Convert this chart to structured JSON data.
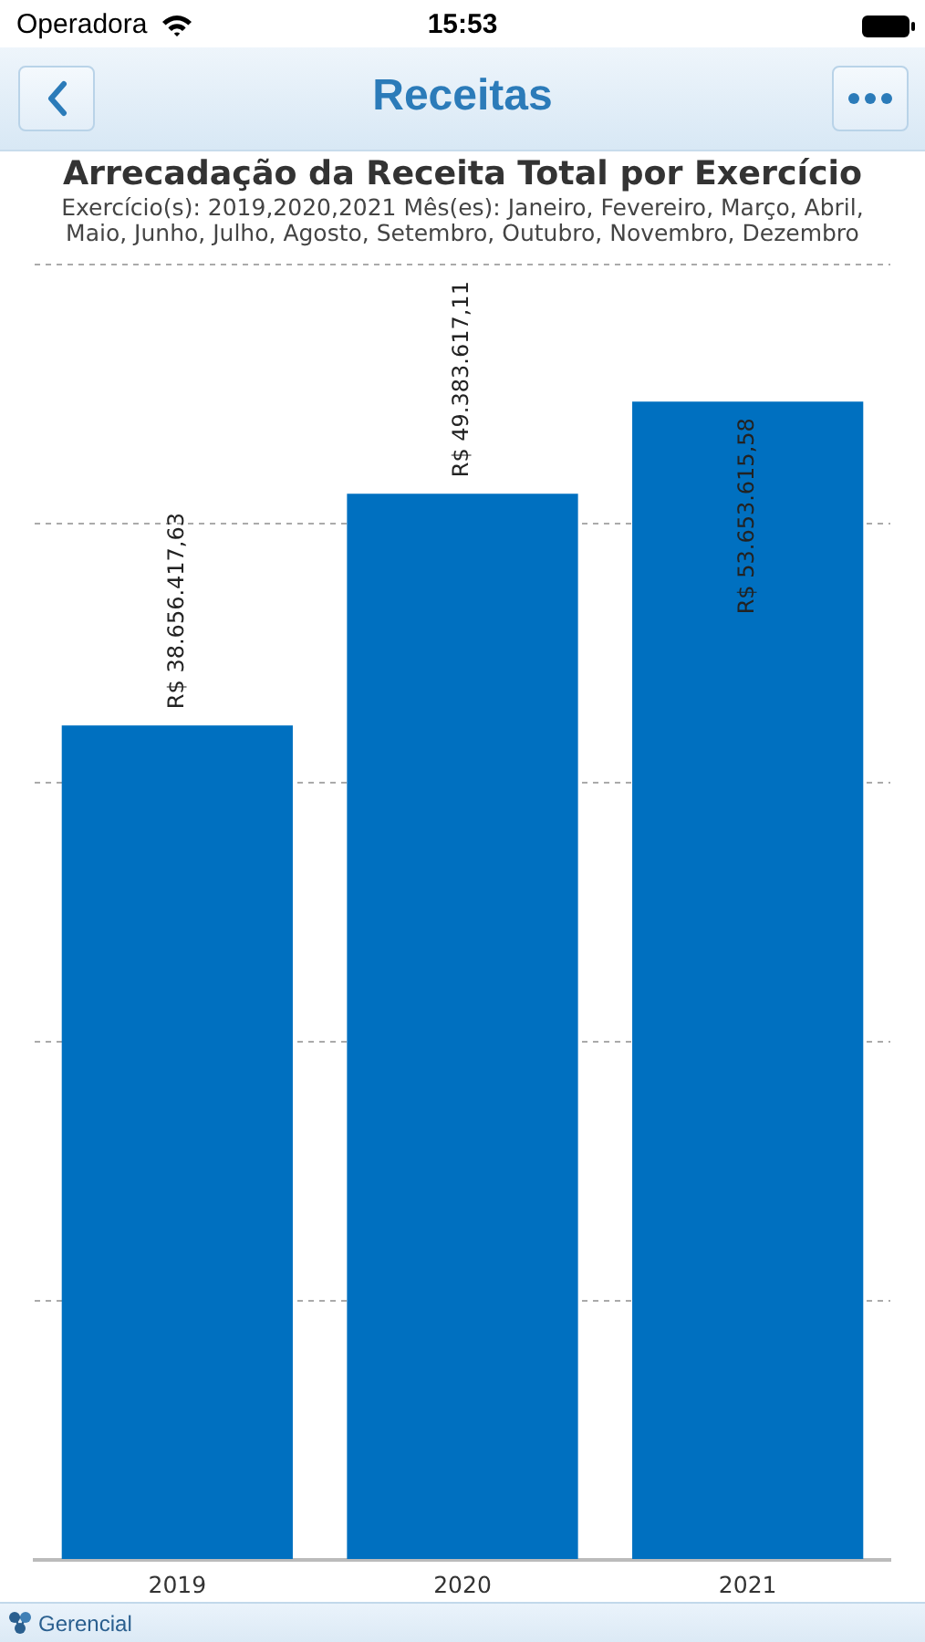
{
  "chart_data": {
    "type": "bar",
    "title": "Arrecadação da Receita Total por Exercício",
    "subtitle": "Exercício(s): 2019,2020,2021 Mês(es): Janeiro, Fevereiro, Março, Abril, Maio, Junho, Julho, Agosto, Setembro, Outubro, Novembro, Dezembro",
    "categories": [
      "2019",
      "2020",
      "2021"
    ],
    "values": [
      38656417.63,
      49383617.11,
      53653615.58
    ],
    "color": "#0070c0",
    "value_labels": [
      "R$ 38.656.417,63",
      "R$ 49.383.617,11",
      "R$ 53.653.615,58"
    ],
    "ylim": [
      0,
      60000000
    ],
    "yticks": [
      {
        "value": 0,
        "label": null
      },
      {
        "value": 12000000,
        "label": null
      },
      {
        "value": 24000000,
        "label": null
      },
      {
        "value": 36000000,
        "label": null
      },
      {
        "value": 48000000,
        "label": null
      },
      {
        "value": 60000000,
        "label": null
      }
    ],
    "tick_labels": "x",
    "grid": "y",
    "annotations": [
      "Operadora",
      "15:53",
      "Receitas",
      "Gerencial"
    ]
  }
}
